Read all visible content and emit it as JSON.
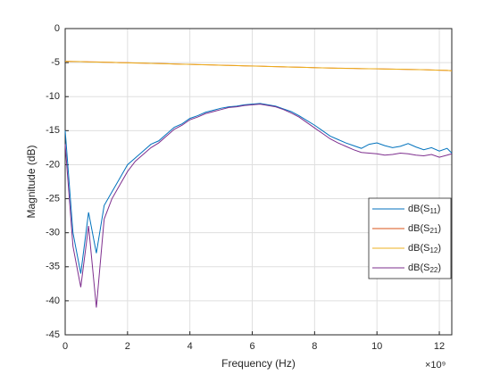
{
  "chart_data": {
    "type": "line",
    "xlabel": "Frequency (Hz)",
    "ylabel": "Magnitude (dB)",
    "x_multiplier": "×10⁹",
    "x": [
      0,
      0.25,
      0.5,
      0.75,
      1,
      1.25,
      1.5,
      1.75,
      2,
      2.25,
      2.5,
      2.75,
      3,
      3.25,
      3.5,
      3.75,
      4,
      4.25,
      4.5,
      4.75,
      5,
      5.25,
      5.5,
      5.75,
      6,
      6.25,
      6.5,
      6.75,
      7,
      7.25,
      7.5,
      7.75,
      8,
      8.25,
      8.5,
      8.75,
      9,
      9.25,
      9.5,
      9.75,
      10,
      10.25,
      10.5,
      10.75,
      11,
      11.25,
      11.5,
      11.75,
      12,
      12.25,
      12.4
    ],
    "series": [
      {
        "name": "dB(S11)",
        "color": "#0072BD",
        "values": [
          -15,
          -30,
          -36,
          -27,
          -33,
          -26,
          -24,
          -22,
          -20,
          -19,
          -18,
          -17,
          -16.5,
          -15.5,
          -14.5,
          -14,
          -13.2,
          -12.8,
          -12.3,
          -12,
          -11.7,
          -11.5,
          -11.4,
          -11.2,
          -11.1,
          -11,
          -11.2,
          -11.4,
          -11.8,
          -12.2,
          -12.8,
          -13.5,
          -14.2,
          -15,
          -15.8,
          -16.3,
          -16.8,
          -17.2,
          -17.6,
          -17,
          -16.8,
          -17.2,
          -17.5,
          -17.3,
          -16.9,
          -17.4,
          -17.8,
          -17.5,
          -18,
          -17.6,
          -18.3
        ]
      },
      {
        "name": "dB(S21)",
        "color": "#D95319",
        "values": [
          -4.8,
          -4.83,
          -4.86,
          -4.88,
          -4.91,
          -4.94,
          -4.97,
          -5.0,
          -5.02,
          -5.05,
          -5.08,
          -5.11,
          -5.14,
          -5.17,
          -5.2,
          -5.23,
          -5.26,
          -5.29,
          -5.32,
          -5.35,
          -5.38,
          -5.41,
          -5.44,
          -5.47,
          -5.5,
          -5.53,
          -5.56,
          -5.59,
          -5.62,
          -5.65,
          -5.68,
          -5.71,
          -5.74,
          -5.77,
          -5.8,
          -5.82,
          -5.84,
          -5.86,
          -5.88,
          -5.9,
          -5.92,
          -5.94,
          -5.96,
          -5.98,
          -6.0,
          -6.02,
          -6.05,
          -6.08,
          -6.11,
          -6.15,
          -6.2
        ]
      },
      {
        "name": "dB(S12)",
        "color": "#EDB120",
        "values": [
          -4.82,
          -4.84,
          -4.85,
          -4.9,
          -4.92,
          -4.95,
          -4.96,
          -5.01,
          -5.03,
          -5.06,
          -5.07,
          -5.12,
          -5.15,
          -5.16,
          -5.21,
          -5.24,
          -5.25,
          -5.3,
          -5.33,
          -5.34,
          -5.39,
          -5.42,
          -5.43,
          -5.48,
          -5.51,
          -5.52,
          -5.57,
          -5.6,
          -5.61,
          -5.66,
          -5.69,
          -5.7,
          -5.75,
          -5.78,
          -5.79,
          -5.83,
          -5.85,
          -5.85,
          -5.89,
          -5.91,
          -5.91,
          -5.95,
          -5.97,
          -5.97,
          -6.01,
          -6.03,
          -6.04,
          -6.09,
          -6.12,
          -6.14,
          -6.21
        ]
      },
      {
        "name": "dB(S22)",
        "color": "#7E2F8E",
        "values": [
          -17,
          -32,
          -38,
          -29,
          -41,
          -28,
          -25,
          -23,
          -21,
          -19.5,
          -18.5,
          -17.5,
          -16.8,
          -15.8,
          -14.8,
          -14.2,
          -13.4,
          -13,
          -12.5,
          -12.2,
          -11.9,
          -11.6,
          -11.5,
          -11.3,
          -11.2,
          -11.1,
          -11.3,
          -11.5,
          -11.9,
          -12.4,
          -13,
          -13.8,
          -14.6,
          -15.4,
          -16.2,
          -16.8,
          -17.3,
          -17.8,
          -18.2,
          -18.3,
          -18.4,
          -18.6,
          -18.5,
          -18.3,
          -18.4,
          -18.6,
          -18.7,
          -18.5,
          -18.9,
          -18.6,
          -18.4
        ]
      }
    ],
    "xlim": [
      0,
      12.4
    ],
    "xticks": [
      0,
      2,
      4,
      6,
      8,
      10,
      12
    ],
    "ylim": [
      -45,
      0
    ],
    "yticks": [
      -45,
      -40,
      -35,
      -30,
      -25,
      -20,
      -15,
      -10,
      -5,
      0
    ],
    "grid": true,
    "legend": "southeast"
  }
}
